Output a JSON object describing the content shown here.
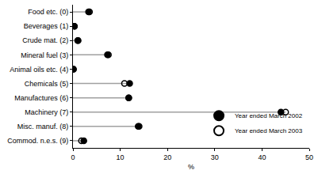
{
  "chart_data": {
    "type": "dot",
    "orientation": "horizontal",
    "categories": [
      "Food etc. (0)",
      "Beverages (1)",
      "Crude mat. (2)",
      "Mineral fuel (3)",
      "Animal oils etc. (4)",
      "Chemicals (5)",
      "Manufactures (6)",
      "Machinery (7)",
      "Misc. manuf. (8)",
      "Commod. n.e.s. (9)"
    ],
    "series": [
      {
        "name": "Year ended March 2002",
        "color": "#000000",
        "marker": "circle",
        "values": [
          3.3,
          0.3,
          1.0,
          7.3,
          0.1,
          12.0,
          11.8,
          44.0,
          13.8,
          2.3
        ]
      },
      {
        "name": "Year ended March 2003",
        "color": "#000000",
        "marker": "circle-open",
        "values": [
          3.5,
          0.3,
          1.1,
          7.5,
          0.1,
          10.9,
          11.8,
          45.0,
          14.0,
          1.8
        ]
      }
    ],
    "x_label": "%",
    "xlim": [
      0,
      50
    ],
    "xticks": [
      0,
      10,
      20,
      30,
      40,
      50
    ],
    "legend": "lower right",
    "grid": false
  }
}
